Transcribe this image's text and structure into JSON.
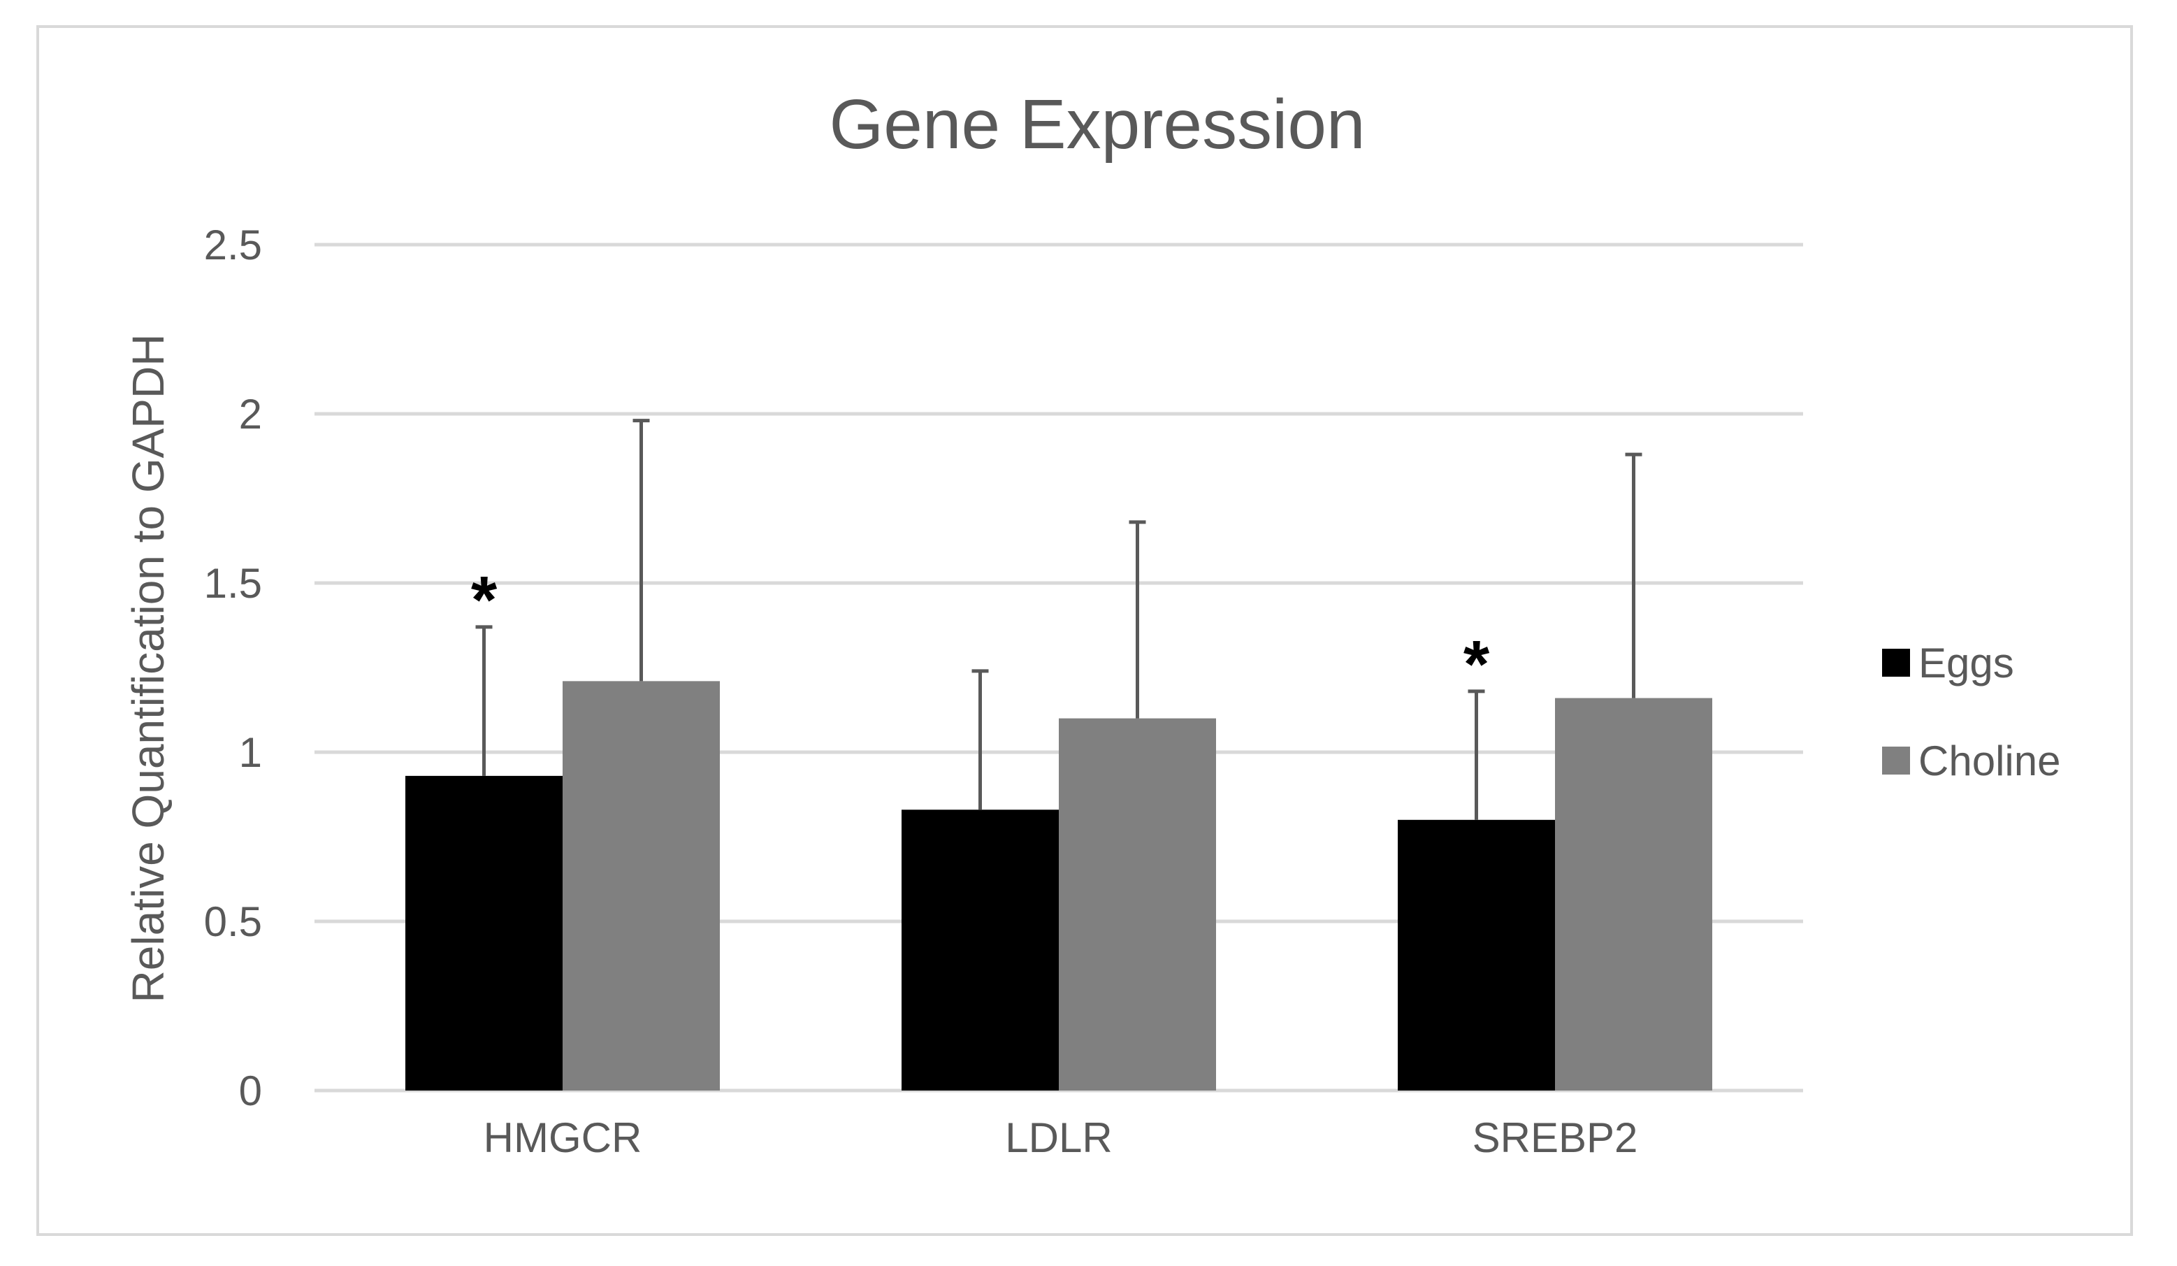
{
  "chart_data": {
    "type": "bar",
    "title": "Gene Expression",
    "xlabel": "",
    "ylabel": "Relative Quantification to GAPDH",
    "ylim": [
      0,
      2.5
    ],
    "yticks": [
      0,
      0.5,
      1,
      1.5,
      2,
      2.5
    ],
    "ytick_labels": [
      "0",
      "0.5",
      "1",
      "1.5",
      "2",
      "2.5"
    ],
    "categories": [
      "HMGCR",
      "LDLR",
      "SREBP2"
    ],
    "series": [
      {
        "name": "Eggs",
        "values": [
          0.93,
          0.83,
          0.8
        ],
        "error_upper": [
          0.44,
          0.41,
          0.38
        ],
        "color": "#000000"
      },
      {
        "name": "Choline",
        "values": [
          1.21,
          1.1,
          1.16
        ],
        "error_upper": [
          0.77,
          0.58,
          0.72
        ],
        "color": "#808080"
      }
    ],
    "annotations": [
      {
        "text": "*",
        "category": "HMGCR",
        "series": "Eggs"
      },
      {
        "text": "*",
        "category": "SREBP2",
        "series": "Eggs"
      }
    ],
    "grid": true,
    "legend_position": "right",
    "colors": {
      "gridline": "#d9d9d9",
      "text": "#595959",
      "error_bar": "#595959",
      "frame": "#d9d9d9"
    }
  }
}
